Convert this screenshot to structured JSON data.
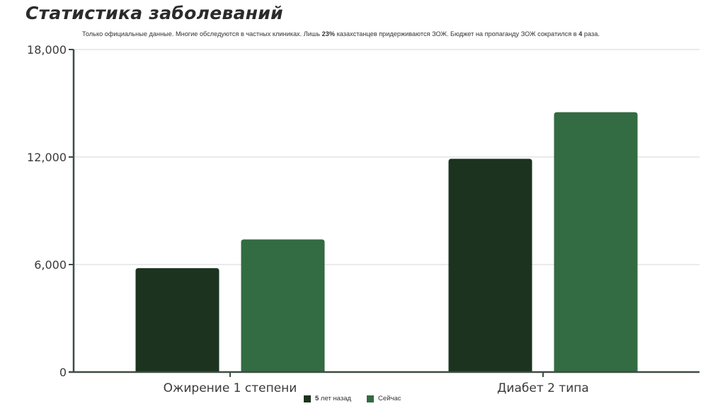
{
  "title": "Статистика заболеваний",
  "subtitle": {
    "part1": "Только официальные данные. Многие обследуются в частных клиниках. Лишь ",
    "pct": "23%",
    "part2": " казахстанцев придерживаются ЗОЖ. Бюджет на пропаганду ЗОЖ сократился в ",
    "times": "4",
    "part3": " раза."
  },
  "legend": {
    "prev_num": "5",
    "prev_text": " лет назад",
    "now_text": "Сейчас"
  },
  "chart_data": {
    "type": "bar",
    "categories": [
      "Ожирение 1 степени",
      "Диабет 2 типа"
    ],
    "series": [
      {
        "name": "5 лет назад",
        "values": [
          5800,
          11900
        ],
        "color": "#1c3320"
      },
      {
        "name": "Сейчас",
        "values": [
          7400,
          14500
        ],
        "color": "#336b42"
      }
    ],
    "ylim": [
      0,
      18000
    ],
    "yticks": [
      0,
      6000,
      12000,
      18000
    ],
    "ytick_labels": [
      "0",
      "6,000",
      "12,000",
      "18,000"
    ],
    "grid": true,
    "legend_position": "bottom-center",
    "axis_color": "#3d4d42",
    "grid_color": "#d4d4d4"
  }
}
